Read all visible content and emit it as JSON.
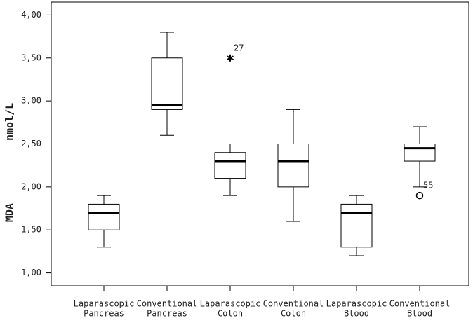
{
  "chart_data": {
    "type": "boxplot",
    "ylabel": "MDA nmol/L",
    "categories": [
      [
        "Laparascopic",
        "Pancreas"
      ],
      [
        "Conventional",
        "Pancreas"
      ],
      [
        "Laparascopic",
        "Colon"
      ],
      [
        "Conventional",
        "Colon"
      ],
      [
        "Laparascopic",
        "Blood"
      ],
      [
        "Conventional",
        "Blood"
      ]
    ],
    "boxes": [
      {
        "whislo": 1.3,
        "q1": 1.5,
        "med": 1.7,
        "q3": 1.8,
        "whishi": 1.9,
        "fliers": []
      },
      {
        "whislo": 2.6,
        "q1": 2.9,
        "med": 2.95,
        "q3": 3.5,
        "whishi": 3.8,
        "fliers": []
      },
      {
        "whislo": 1.9,
        "q1": 2.1,
        "med": 2.3,
        "q3": 2.4,
        "whishi": 2.5,
        "fliers": [
          {
            "value": 3.5,
            "label": "27",
            "marker": "star"
          }
        ]
      },
      {
        "whislo": 1.6,
        "q1": 2.0,
        "med": 2.3,
        "q3": 2.5,
        "whishi": 2.9,
        "fliers": []
      },
      {
        "whislo": 1.2,
        "q1": 1.3,
        "med": 1.7,
        "q3": 1.8,
        "whishi": 1.9,
        "fliers": []
      },
      {
        "whislo": 2.0,
        "q1": 2.3,
        "med": 2.45,
        "q3": 2.5,
        "whishi": 2.7,
        "fliers": [
          {
            "value": 1.9,
            "label": "55",
            "marker": "circle"
          }
        ]
      }
    ],
    "color": "#ffffff",
    "ylim": [
      0.85,
      4.15
    ],
    "yticks": [
      {
        "value": 1,
        "label": "1,00"
      },
      {
        "value": 1.5,
        "label": "1,50"
      },
      {
        "value": 2,
        "label": "2,00"
      },
      {
        "value": 2.5,
        "label": "2,50"
      },
      {
        "value": 3,
        "label": "3,00"
      },
      {
        "value": 3.5,
        "label": "3,50"
      },
      {
        "value": 4,
        "label": "4,00"
      }
    ]
  }
}
